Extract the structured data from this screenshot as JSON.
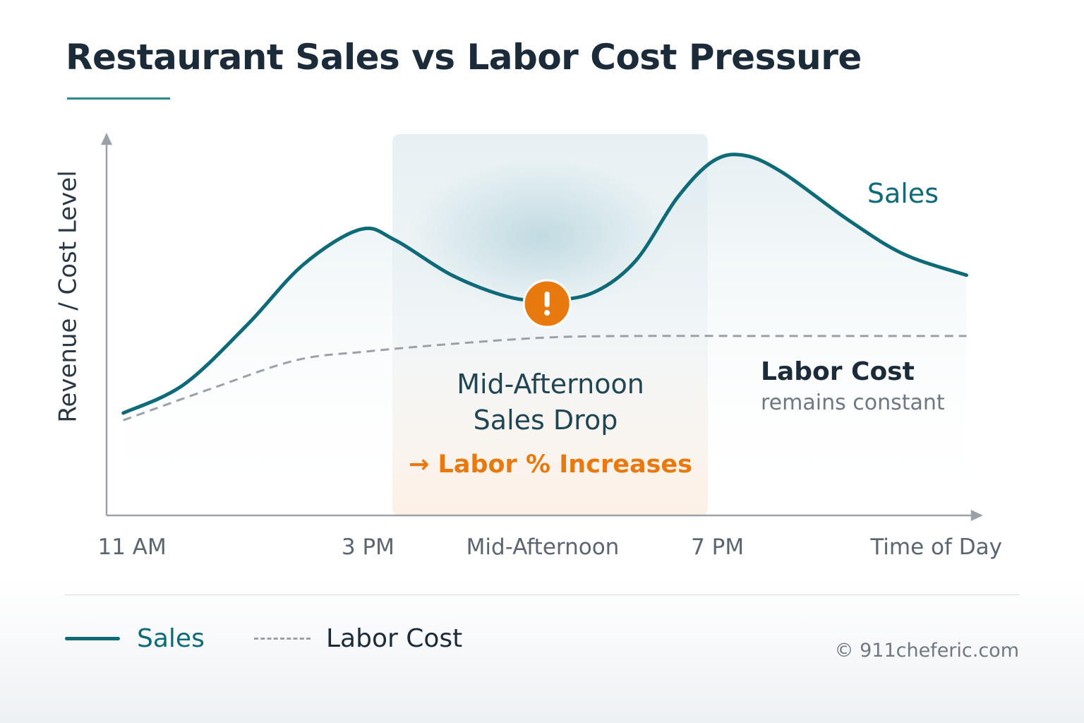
{
  "chart_data": {
    "type": "line",
    "title": "Restaurant Sales vs Labor Cost Pressure",
    "xlabel": "Time of Day",
    "ylabel": "Revenue / Cost Level",
    "x_scale_note_hidden": "",
    "xlim": [
      0,
      100
    ],
    "ylim": [
      0,
      100
    ],
    "x_ticks": [
      {
        "label": "11 AM",
        "x": 3
      },
      {
        "label": "3 PM",
        "x": 30
      },
      {
        "label": "Mid-Afternoon",
        "x": 50
      },
      {
        "label": "7 PM",
        "x": 70
      }
    ],
    "grid": false,
    "series": [
      {
        "name": "Sales",
        "color": "#0f6a78",
        "style": "solid",
        "x": [
          2,
          8.9,
          16.2,
          22.6,
          29.1,
          33.1,
          39.6,
          46,
          50.5,
          55.7,
          60.6,
          65.4,
          69.5,
          73.1,
          77.5,
          84.8,
          91.3,
          98.5
        ],
        "y": [
          27.1,
          34.6,
          50.5,
          66.4,
          75.7,
          72.9,
          63.6,
          57.9,
          57,
          58.9,
          67.3,
          84.1,
          93.8,
          95.3,
          90.7,
          78.5,
          69.2,
          63.6
        ]
      },
      {
        "name": "Labor Cost",
        "color": "#9aa1a8",
        "style": "dashed",
        "x": [
          2,
          12.1,
          21.8,
          29.9,
          39.6,
          50.5,
          60.6,
          76.7,
          98.5
        ],
        "y": [
          25.2,
          33.6,
          41.1,
          43.4,
          45.4,
          47.1,
          47.5,
          47.5,
          47.5
        ]
      }
    ],
    "highlight_region": {
      "x": [
        32.8,
        68.9
      ]
    },
    "annotations": {
      "sales_label": "Sales",
      "alert_icon": "exclamation-circle-icon",
      "alert_color": "#e8790f",
      "drop_line1": "Mid-Afternoon",
      "drop_line2": "Sales Drop",
      "labor_increase": "→ Labor % Increases",
      "labor_label": "Labor Cost",
      "labor_sub": "remains constant"
    },
    "legend": {
      "placement": "bottom-left",
      "items": [
        "Sales",
        "Labor Cost"
      ]
    }
  },
  "footer": {
    "copyright": "© 911cheferic.com"
  }
}
